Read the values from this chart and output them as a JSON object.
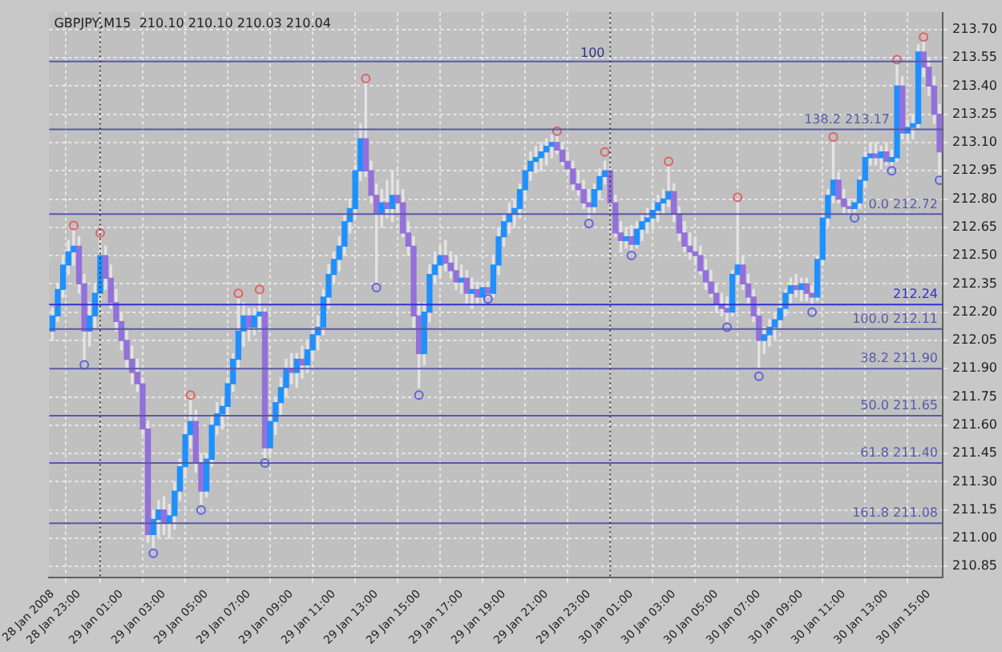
{
  "chart_data": {
    "type": "candlestick",
    "title": "GBPJPY,M15  210.10 210.10 210.03 210.04",
    "x": [
      "2008-01-28T21:45",
      "2008-01-28T22:00",
      "2008-01-28T22:15",
      "2008-01-28T22:30",
      "2008-01-28T22:45",
      "2008-01-28T23:00",
      "2008-01-28T23:15",
      "2008-01-28T23:30",
      "2008-01-28T23:45",
      "2008-01-29T00:00",
      "2008-01-29T00:15",
      "2008-01-29T00:30",
      "2008-01-29T00:45",
      "2008-01-29T01:00",
      "2008-01-29T01:15",
      "2008-01-29T01:30",
      "2008-01-29T01:45",
      "2008-01-29T02:00",
      "2008-01-29T02:15",
      "2008-01-29T02:30",
      "2008-01-29T02:45",
      "2008-01-29T03:00",
      "2008-01-29T03:15",
      "2008-01-29T03:30",
      "2008-01-29T03:45",
      "2008-01-29T04:00",
      "2008-01-29T04:15",
      "2008-01-29T04:30",
      "2008-01-29T04:45",
      "2008-01-29T05:00",
      "2008-01-29T05:15",
      "2008-01-29T05:30",
      "2008-01-29T05:45",
      "2008-01-29T06:00",
      "2008-01-29T06:15",
      "2008-01-29T06:30",
      "2008-01-29T06:45",
      "2008-01-29T07:00",
      "2008-01-29T07:15",
      "2008-01-29T07:30",
      "2008-01-29T07:45",
      "2008-01-29T08:00",
      "2008-01-29T08:15",
      "2008-01-29T08:30",
      "2008-01-29T08:45",
      "2008-01-29T09:00",
      "2008-01-29T09:15",
      "2008-01-29T09:30",
      "2008-01-29T09:45",
      "2008-01-29T10:00",
      "2008-01-29T10:15",
      "2008-01-29T10:30",
      "2008-01-29T10:45",
      "2008-01-29T11:00",
      "2008-01-29T11:15",
      "2008-01-29T11:30",
      "2008-01-29T11:45",
      "2008-01-29T12:00",
      "2008-01-29T12:15",
      "2008-01-29T12:30",
      "2008-01-29T12:45",
      "2008-01-29T13:00",
      "2008-01-29T13:15",
      "2008-01-29T13:30",
      "2008-01-29T13:45",
      "2008-01-29T14:00",
      "2008-01-29T14:15",
      "2008-01-29T14:30",
      "2008-01-29T14:45",
      "2008-01-29T15:00",
      "2008-01-29T15:15",
      "2008-01-29T15:30",
      "2008-01-29T15:45",
      "2008-01-29T16:00",
      "2008-01-29T16:15",
      "2008-01-29T16:30",
      "2008-01-29T16:45",
      "2008-01-29T17:00",
      "2008-01-29T17:15",
      "2008-01-29T17:30",
      "2008-01-29T17:45",
      "2008-01-29T18:00",
      "2008-01-29T18:15",
      "2008-01-29T18:30",
      "2008-01-29T18:45",
      "2008-01-29T19:00",
      "2008-01-29T19:15",
      "2008-01-29T19:30",
      "2008-01-29T19:45",
      "2008-01-29T20:00",
      "2008-01-29T20:15",
      "2008-01-29T20:30",
      "2008-01-29T20:45",
      "2008-01-29T21:00",
      "2008-01-29T21:15",
      "2008-01-29T21:30",
      "2008-01-29T21:45",
      "2008-01-29T22:00",
      "2008-01-29T22:15",
      "2008-01-29T22:30",
      "2008-01-29T22:45",
      "2008-01-29T23:00",
      "2008-01-29T23:15",
      "2008-01-29T23:30",
      "2008-01-29T23:45",
      "2008-01-30T00:00",
      "2008-01-30T00:15",
      "2008-01-30T00:30",
      "2008-01-30T00:45",
      "2008-01-30T01:00",
      "2008-01-30T01:15",
      "2008-01-30T01:30",
      "2008-01-30T01:45",
      "2008-01-30T02:00",
      "2008-01-30T02:15",
      "2008-01-30T02:30",
      "2008-01-30T02:45",
      "2008-01-30T03:00",
      "2008-01-30T03:15",
      "2008-01-30T03:30",
      "2008-01-30T03:45",
      "2008-01-30T04:00",
      "2008-01-30T04:15",
      "2008-01-30T04:30",
      "2008-01-30T04:45",
      "2008-01-30T05:00",
      "2008-01-30T05:15",
      "2008-01-30T05:30",
      "2008-01-30T05:45",
      "2008-01-30T06:00",
      "2008-01-30T06:15",
      "2008-01-30T06:30",
      "2008-01-30T06:45",
      "2008-01-30T07:00",
      "2008-01-30T07:15",
      "2008-01-30T07:30",
      "2008-01-30T07:45",
      "2008-01-30T08:00",
      "2008-01-30T08:15",
      "2008-01-30T08:30",
      "2008-01-30T08:45",
      "2008-01-30T09:00",
      "2008-01-30T09:15",
      "2008-01-30T09:30",
      "2008-01-30T09:45",
      "2008-01-30T10:00",
      "2008-01-30T10:15",
      "2008-01-30T10:30",
      "2008-01-30T10:45",
      "2008-01-30T11:00",
      "2008-01-30T11:15",
      "2008-01-30T11:30",
      "2008-01-30T11:45",
      "2008-01-30T12:00",
      "2008-01-30T12:15",
      "2008-01-30T12:30",
      "2008-01-30T12:45",
      "2008-01-30T13:00",
      "2008-01-30T13:15",
      "2008-01-30T13:30",
      "2008-01-30T13:45",
      "2008-01-30T14:00",
      "2008-01-30T14:15",
      "2008-01-30T14:30",
      "2008-01-30T14:45",
      "2008-01-30T15:00",
      "2008-01-30T15:15",
      "2008-01-30T15:30"
    ],
    "ohlc": [
      [
        212.1,
        212.22,
        212.05,
        212.18
      ],
      [
        212.18,
        212.35,
        212.15,
        212.32
      ],
      [
        212.32,
        212.5,
        212.28,
        212.45
      ],
      [
        212.45,
        212.58,
        212.4,
        212.52
      ],
      [
        212.52,
        212.64,
        212.45,
        212.55
      ],
      [
        212.55,
        212.6,
        212.3,
        212.35
      ],
      [
        212.35,
        212.4,
        211.95,
        212.1
      ],
      [
        212.1,
        212.25,
        212.02,
        212.18
      ],
      [
        212.18,
        212.35,
        212.12,
        212.3
      ],
      [
        212.3,
        212.6,
        212.25,
        212.5
      ],
      [
        212.5,
        212.55,
        212.32,
        212.38
      ],
      [
        212.38,
        212.45,
        212.22,
        212.25
      ],
      [
        212.25,
        212.32,
        212.1,
        212.15
      ],
      [
        212.15,
        212.2,
        212.0,
        212.05
      ],
      [
        212.05,
        212.1,
        211.9,
        211.95
      ],
      [
        211.95,
        212.02,
        211.82,
        211.88
      ],
      [
        211.88,
        211.95,
        211.78,
        211.82
      ],
      [
        211.82,
        211.85,
        211.55,
        211.58
      ],
      [
        211.58,
        211.62,
        210.98,
        211.02
      ],
      [
        211.02,
        211.15,
        210.95,
        211.1
      ],
      [
        211.1,
        211.2,
        211.0,
        211.15
      ],
      [
        211.15,
        211.22,
        211.02,
        211.08
      ],
      [
        211.08,
        211.18,
        211.0,
        211.12
      ],
      [
        211.12,
        211.3,
        211.05,
        211.25
      ],
      [
        211.25,
        211.42,
        211.2,
        211.38
      ],
      [
        211.38,
        211.6,
        211.32,
        211.55
      ],
      [
        211.55,
        211.74,
        211.48,
        211.62
      ],
      [
        211.62,
        211.68,
        211.35,
        211.4
      ],
      [
        211.4,
        211.45,
        211.18,
        211.25
      ],
      [
        211.25,
        211.45,
        211.22,
        211.42
      ],
      [
        211.42,
        211.65,
        211.38,
        211.6
      ],
      [
        211.6,
        211.72,
        211.55,
        211.66
      ],
      [
        211.66,
        211.75,
        211.58,
        211.7
      ],
      [
        211.7,
        211.85,
        211.65,
        211.82
      ],
      [
        211.82,
        211.98,
        211.78,
        211.95
      ],
      [
        211.95,
        212.27,
        211.9,
        212.1
      ],
      [
        212.1,
        212.25,
        212.02,
        212.18
      ],
      [
        212.18,
        212.22,
        212.05,
        212.12
      ],
      [
        212.12,
        212.22,
        212.08,
        212.18
      ],
      [
        212.18,
        212.3,
        212.1,
        212.2
      ],
      [
        212.2,
        212.22,
        211.42,
        211.48
      ],
      [
        211.48,
        211.65,
        211.45,
        211.62
      ],
      [
        211.62,
        211.75,
        211.55,
        211.72
      ],
      [
        211.72,
        211.85,
        211.65,
        211.8
      ],
      [
        211.8,
        211.95,
        211.75,
        211.9
      ],
      [
        211.9,
        211.98,
        211.82,
        211.88
      ],
      [
        211.88,
        211.98,
        211.8,
        211.95
      ],
      [
        211.95,
        212.02,
        211.85,
        211.92
      ],
      [
        211.92,
        212.05,
        211.88,
        212.0
      ],
      [
        212.0,
        212.12,
        211.95,
        212.08
      ],
      [
        212.08,
        212.18,
        212.0,
        212.12
      ],
      [
        212.12,
        212.32,
        212.08,
        212.28
      ],
      [
        212.28,
        212.45,
        212.22,
        212.4
      ],
      [
        212.4,
        212.52,
        212.35,
        212.48
      ],
      [
        212.48,
        212.6,
        212.42,
        212.55
      ],
      [
        212.55,
        212.72,
        212.5,
        212.68
      ],
      [
        212.68,
        212.8,
        212.62,
        212.75
      ],
      [
        212.75,
        212.98,
        212.7,
        212.95
      ],
      [
        212.95,
        213.2,
        212.9,
        213.12
      ],
      [
        213.12,
        213.42,
        212.92,
        212.95
      ],
      [
        212.95,
        213.0,
        212.78,
        212.82
      ],
      [
        212.82,
        212.88,
        212.35,
        212.72
      ],
      [
        212.72,
        212.85,
        212.65,
        212.78
      ],
      [
        212.78,
        212.9,
        212.7,
        212.75
      ],
      [
        212.75,
        212.95,
        212.68,
        212.82
      ],
      [
        212.82,
        212.9,
        212.72,
        212.78
      ],
      [
        212.78,
        212.85,
        212.6,
        212.62
      ],
      [
        212.62,
        212.68,
        212.5,
        212.55
      ],
      [
        212.55,
        212.6,
        212.12,
        212.18
      ],
      [
        212.18,
        212.25,
        211.8,
        211.98
      ],
      [
        211.98,
        212.25,
        211.92,
        212.2
      ],
      [
        212.2,
        212.45,
        212.15,
        212.4
      ],
      [
        212.4,
        212.52,
        212.35,
        212.45
      ],
      [
        212.45,
        212.55,
        212.38,
        212.5
      ],
      [
        212.5,
        212.58,
        212.42,
        212.46
      ],
      [
        212.46,
        212.52,
        212.38,
        212.42
      ],
      [
        212.42,
        212.5,
        212.32,
        212.36
      ],
      [
        212.36,
        212.45,
        212.3,
        212.38
      ],
      [
        212.38,
        212.42,
        212.25,
        212.3
      ],
      [
        212.3,
        212.38,
        212.22,
        212.32
      ],
      [
        212.32,
        212.36,
        212.25,
        212.28
      ],
      [
        212.28,
        212.35,
        212.26,
        212.33
      ],
      [
        212.33,
        212.36,
        212.28,
        212.3
      ],
      [
        212.3,
        212.5,
        212.28,
        212.45
      ],
      [
        212.45,
        212.65,
        212.4,
        212.6
      ],
      [
        212.6,
        212.72,
        212.55,
        212.68
      ],
      [
        212.68,
        212.78,
        212.62,
        212.72
      ],
      [
        212.72,
        212.8,
        212.65,
        212.75
      ],
      [
        212.75,
        212.88,
        212.7,
        212.85
      ],
      [
        212.85,
        212.98,
        212.8,
        212.95
      ],
      [
        212.95,
        213.05,
        212.9,
        213.0
      ],
      [
        213.0,
        213.08,
        212.94,
        213.02
      ],
      [
        213.02,
        213.1,
        212.95,
        213.05
      ],
      [
        213.05,
        213.12,
        212.98,
        213.08
      ],
      [
        213.08,
        213.14,
        213.02,
        213.1
      ],
      [
        213.1,
        213.14,
        213.04,
        213.06
      ],
      [
        213.06,
        213.1,
        212.98,
        213.0
      ],
      [
        213.0,
        213.05,
        212.94,
        212.96
      ],
      [
        212.96,
        213.0,
        212.85,
        212.88
      ],
      [
        212.88,
        212.95,
        212.82,
        212.85
      ],
      [
        212.85,
        212.9,
        212.75,
        212.78
      ],
      [
        212.78,
        212.85,
        212.7,
        212.76
      ],
      [
        212.76,
        212.88,
        212.72,
        212.85
      ],
      [
        212.85,
        212.96,
        212.8,
        212.92
      ],
      [
        212.92,
        213.0,
        212.88,
        212.95
      ],
      [
        212.95,
        212.98,
        212.75,
        212.78
      ],
      [
        212.78,
        212.82,
        212.6,
        212.62
      ],
      [
        212.62,
        212.68,
        212.52,
        212.58
      ],
      [
        212.58,
        212.65,
        212.54,
        212.6
      ],
      [
        212.6,
        212.66,
        212.52,
        212.56
      ],
      [
        212.56,
        212.68,
        212.54,
        212.64
      ],
      [
        212.64,
        212.72,
        212.58,
        212.68
      ],
      [
        212.68,
        212.75,
        212.62,
        212.7
      ],
      [
        212.7,
        212.78,
        212.64,
        212.74
      ],
      [
        212.74,
        212.82,
        212.68,
        212.78
      ],
      [
        212.78,
        212.85,
        212.72,
        212.8
      ],
      [
        212.8,
        212.97,
        212.76,
        212.84
      ],
      [
        212.84,
        212.88,
        212.68,
        212.72
      ],
      [
        212.72,
        212.76,
        212.58,
        212.62
      ],
      [
        212.62,
        212.68,
        212.52,
        212.55
      ],
      [
        212.55,
        212.62,
        212.48,
        212.52
      ],
      [
        212.52,
        212.6,
        212.46,
        212.5
      ],
      [
        212.5,
        212.55,
        212.4,
        212.42
      ],
      [
        212.42,
        212.48,
        212.32,
        212.36
      ],
      [
        212.36,
        212.42,
        212.28,
        212.3
      ],
      [
        212.3,
        212.35,
        212.2,
        212.24
      ],
      [
        212.24,
        212.3,
        212.18,
        212.22
      ],
      [
        212.22,
        212.28,
        212.15,
        212.2
      ],
      [
        212.2,
        212.42,
        212.18,
        212.4
      ],
      [
        212.4,
        212.78,
        212.36,
        212.45
      ],
      [
        212.45,
        212.5,
        212.32,
        212.35
      ],
      [
        212.35,
        212.4,
        212.25,
        212.28
      ],
      [
        212.28,
        212.32,
        212.15,
        212.18
      ],
      [
        212.18,
        212.22,
        211.9,
        212.05
      ],
      [
        212.05,
        212.12,
        211.98,
        212.08
      ],
      [
        212.08,
        212.16,
        212.02,
        212.12
      ],
      [
        212.12,
        212.2,
        212.06,
        212.16
      ],
      [
        212.16,
        212.26,
        212.12,
        212.22
      ],
      [
        212.22,
        212.32,
        212.18,
        212.3
      ],
      [
        212.3,
        212.38,
        212.25,
        212.34
      ],
      [
        212.34,
        212.4,
        212.28,
        212.32
      ],
      [
        212.32,
        212.38,
        212.26,
        212.35
      ],
      [
        212.35,
        212.38,
        212.26,
        212.3
      ],
      [
        212.3,
        212.34,
        212.24,
        212.28
      ],
      [
        212.28,
        212.5,
        212.26,
        212.48
      ],
      [
        212.48,
        212.72,
        212.45,
        212.7
      ],
      [
        212.7,
        212.85,
        212.66,
        212.82
      ],
      [
        212.82,
        213.1,
        212.78,
        212.9
      ],
      [
        212.9,
        212.94,
        212.78,
        212.8
      ],
      [
        212.8,
        212.85,
        212.72,
        212.76
      ],
      [
        212.76,
        212.8,
        212.72,
        212.75
      ],
      [
        212.75,
        212.8,
        212.73,
        212.78
      ],
      [
        212.78,
        212.92,
        212.75,
        212.9
      ],
      [
        212.9,
        213.05,
        212.86,
        213.02
      ],
      [
        213.02,
        213.1,
        212.98,
        213.04
      ],
      [
        213.04,
        213.1,
        212.98,
        213.02
      ],
      [
        213.02,
        213.08,
        212.96,
        213.05
      ],
      [
        213.05,
        213.1,
        212.98,
        213.0
      ],
      [
        213.0,
        213.06,
        212.98,
        213.02
      ],
      [
        213.02,
        213.52,
        213.0,
        213.4
      ],
      [
        213.4,
        213.45,
        213.12,
        213.15
      ],
      [
        213.15,
        213.22,
        213.1,
        213.18
      ],
      [
        213.18,
        213.25,
        213.12,
        213.2
      ],
      [
        213.2,
        213.62,
        213.18,
        213.58
      ],
      [
        213.58,
        213.64,
        213.45,
        213.5
      ],
      [
        213.5,
        213.55,
        213.35,
        213.4
      ],
      [
        213.4,
        213.45,
        213.2,
        213.25
      ],
      [
        213.25,
        213.3,
        212.92,
        213.05
      ]
    ],
    "series": [
      {
        "type": "scatter",
        "color": "#e06060",
        "x": [
          "2008-01-28T22:45",
          "2008-01-29T00:00",
          "2008-01-29T04:15",
          "2008-01-29T06:30",
          "2008-01-29T07:30",
          "2008-01-29T12:30",
          "2008-01-29T21:30",
          "2008-01-29T23:45",
          "2008-01-30T02:45",
          "2008-01-30T06:00",
          "2008-01-30T10:30",
          "2008-01-30T13:30",
          "2008-01-30T14:45"
        ],
        "values": [
          212.66,
          212.62,
          211.76,
          212.3,
          212.32,
          213.44,
          213.16,
          213.05,
          213.0,
          212.81,
          213.13,
          213.54,
          213.66
        ]
      },
      {
        "type": "scatter",
        "color": "#6060e0",
        "x": [
          "2008-01-28T23:15",
          "2008-01-29T02:30",
          "2008-01-29T04:45",
          "2008-01-29T07:45",
          "2008-01-29T13:00",
          "2008-01-29T15:00",
          "2008-01-29T18:15",
          "2008-01-29T23:00",
          "2008-01-30T01:00",
          "2008-01-30T05:30",
          "2008-01-30T07:00",
          "2008-01-30T09:30",
          "2008-01-30T11:30",
          "2008-01-30T13:15",
          "2008-01-30T15:30"
        ],
        "values": [
          211.92,
          210.92,
          211.15,
          211.4,
          212.33,
          211.76,
          212.27,
          212.67,
          212.5,
          212.12,
          211.86,
          212.2,
          212.7,
          212.95,
          212.9
        ]
      }
    ],
    "marker": "circle",
    "xlim": [
      "2008-01-28T21:36",
      "2008-01-30T15:39"
    ],
    "xticks": [
      {
        "value": "2008-01-28T21:45",
        "label": "28 Jan 2008"
      },
      {
        "value": "2008-01-28T23:00",
        "label": "28 Jan 23:00"
      },
      {
        "value": "2008-01-29T01:00",
        "label": "29 Jan 01:00"
      },
      {
        "value": "2008-01-29T03:00",
        "label": "29 Jan 03:00"
      },
      {
        "value": "2008-01-29T05:00",
        "label": "29 Jan 05:00"
      },
      {
        "value": "2008-01-29T07:00",
        "label": "29 Jan 07:00"
      },
      {
        "value": "2008-01-29T09:00",
        "label": "29 Jan 09:00"
      },
      {
        "value": "2008-01-29T11:00",
        "label": "29 Jan 11:00"
      },
      {
        "value": "2008-01-29T13:00",
        "label": "29 Jan 13:00"
      },
      {
        "value": "2008-01-29T15:00",
        "label": "29 Jan 15:00"
      },
      {
        "value": "2008-01-29T17:00",
        "label": "29 Jan 17:00"
      },
      {
        "value": "2008-01-29T19:00",
        "label": "29 Jan 19:00"
      },
      {
        "value": "2008-01-29T21:00",
        "label": "29 Jan 21:00"
      },
      {
        "value": "2008-01-29T23:00",
        "label": "29 Jan 23:00"
      },
      {
        "value": "2008-01-30T01:00",
        "label": "30 Jan 01:00"
      },
      {
        "value": "2008-01-30T03:00",
        "label": "30 Jan 03:00"
      },
      {
        "value": "2008-01-30T05:00",
        "label": "30 Jan 05:00"
      },
      {
        "value": "2008-01-30T07:00",
        "label": "30 Jan 07:00"
      },
      {
        "value": "2008-01-30T09:00",
        "label": "30 Jan 09:00"
      },
      {
        "value": "2008-01-30T11:00",
        "label": "30 Jan 11:00"
      },
      {
        "value": "2008-01-30T13:00",
        "label": "30 Jan 13:00"
      },
      {
        "value": "2008-01-30T15:00",
        "label": "30 Jan 15:00"
      }
    ],
    "ylim": [
      210.79,
      213.79
    ],
    "yticks": [
      {
        "value": 210.85,
        "label": "210.85"
      },
      {
        "value": 211,
        "label": "211.00"
      },
      {
        "value": 211.15,
        "label": "211.15"
      },
      {
        "value": 211.3,
        "label": "211.30"
      },
      {
        "value": 211.45,
        "label": "211.45"
      },
      {
        "value": 211.6,
        "label": "211.60"
      },
      {
        "value": 211.75,
        "label": "211.75"
      },
      {
        "value": 211.9,
        "label": "211.90"
      },
      {
        "value": 212.05,
        "label": "212.05"
      },
      {
        "value": 212.2,
        "label": "212.20"
      },
      {
        "value": 212.35,
        "label": "212.35"
      },
      {
        "value": 212.5,
        "label": "212.50"
      },
      {
        "value": 212.65,
        "label": "212.65"
      },
      {
        "value": 212.8,
        "label": "212.80"
      },
      {
        "value": 212.95,
        "label": "212.95"
      },
      {
        "value": 213.1,
        "label": "213.10"
      },
      {
        "value": 213.25,
        "label": "213.25"
      },
      {
        "value": 213.4,
        "label": "213.40"
      },
      {
        "value": 213.55,
        "label": "213.55"
      },
      {
        "value": 213.7,
        "label": "213.70"
      }
    ],
    "ref_lines": [
      {
        "axis": "y",
        "value": 213.53,
        "color": "#5858a8"
      },
      {
        "axis": "y",
        "value": 213.17,
        "label": "138.2 213.17",
        "color": "#5858a8"
      },
      {
        "axis": "y",
        "value": 212.72,
        "label": "0.0 212.72",
        "color": "#5858a8"
      },
      {
        "axis": "y",
        "value": 212.24,
        "label": "212.24",
        "color": "#3030d0"
      },
      {
        "axis": "y",
        "value": 212.11,
        "label": "100.0 212.11",
        "color": "#5858a8"
      },
      {
        "axis": "y",
        "value": 211.9,
        "label": "38.2 211.90",
        "color": "#5858a8"
      },
      {
        "axis": "y",
        "value": 211.65,
        "label": "50.0 211.65",
        "color": "#5858a8"
      },
      {
        "axis": "y",
        "value": 211.4,
        "label": "61.8 211.40",
        "color": "#5858a8"
      },
      {
        "axis": "y",
        "value": 211.08,
        "label": "161.8 211.08",
        "color": "#5858a8"
      },
      {
        "axis": "x",
        "value": "2008-01-29T00:00",
        "color": "#404040",
        "line_style": "dotted"
      },
      {
        "axis": "x",
        "value": "2008-01-30T00:00",
        "color": "#404040",
        "line_style": "dotted"
      }
    ],
    "annotations": [
      {
        "text": "100",
        "x": "2008-01-29T23:45",
        "y": 213.53
      }
    ],
    "grid": true,
    "legend": false
  }
}
